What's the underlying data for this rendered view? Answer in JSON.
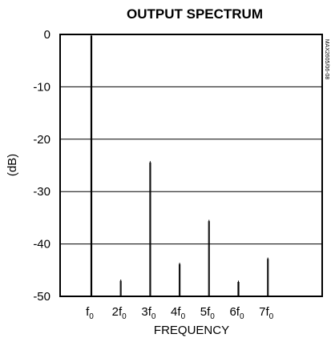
{
  "chart_data": {
    "type": "bar",
    "title": "OUTPUT SPECTRUM",
    "xlabel": "FREQUENCY",
    "ylabel": "(dB)",
    "side_code": "MAX2605/06-08",
    "ylim": [
      -50,
      0
    ],
    "yticks": [
      "0",
      "-10",
      "-20",
      "-30",
      "-40",
      "-50"
    ],
    "grid": true,
    "categories": [
      {
        "base": "f",
        "sub": "0",
        "prefix": ""
      },
      {
        "base": "f",
        "sub": "0",
        "prefix": "2"
      },
      {
        "base": "f",
        "sub": "0",
        "prefix": "3"
      },
      {
        "base": "f",
        "sub": "0",
        "prefix": "4"
      },
      {
        "base": "f",
        "sub": "0",
        "prefix": "5"
      },
      {
        "base": "f",
        "sub": "0",
        "prefix": "6"
      },
      {
        "base": "f",
        "sub": "0",
        "prefix": "7"
      }
    ],
    "harmonics": [
      1,
      2,
      3,
      4,
      5,
      6,
      7
    ],
    "values": [
      0,
      -46.8,
      -24.2,
      -43.6,
      -35.4,
      -47.0,
      -42.6
    ],
    "colors": {
      "line": "#000000",
      "background": "#ffffff"
    }
  }
}
